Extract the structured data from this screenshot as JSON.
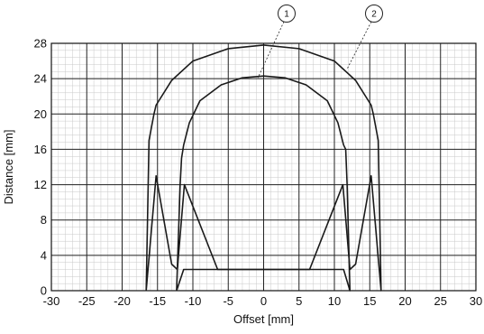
{
  "chart_data": {
    "type": "line",
    "xlabel": "Offset [mm]",
    "ylabel": "Distance [mm]",
    "xlim": [
      -30,
      30
    ],
    "ylim": [
      0,
      28
    ],
    "xticks": [
      -30,
      -25,
      -20,
      -15,
      -10,
      -5,
      0,
      5,
      10,
      15,
      20,
      25,
      30
    ],
    "yticks": [
      0,
      4,
      8,
      12,
      16,
      20,
      24,
      28
    ],
    "grid": true,
    "minor_grid": true,
    "line_color": "#1a1a1a",
    "series": [
      {
        "name": "1",
        "x": [
          -12.3,
          -11.3,
          -6.5,
          6.5,
          11.3,
          12.2,
          12.2,
          11.8,
          11.6,
          11.3,
          11.3,
          10.5,
          9.0,
          6.0,
          3.0,
          0.0,
          -3.0,
          -6.0,
          -9.0,
          -10.5,
          -11.3,
          -11.3,
          -11.6,
          -11.8,
          -12.3
        ],
        "y": [
          0.0,
          2.4,
          2.4,
          2.4,
          2.4,
          0.0,
          0.0,
          12.0,
          16.0,
          16.5,
          16.5,
          19.0,
          21.5,
          23.3,
          24.1,
          24.3,
          24.1,
          23.3,
          21.5,
          19.0,
          16.5,
          16.5,
          15.0,
          12.0,
          0.0
        ]
      },
      {
        "name": "2",
        "x": [
          -16.6,
          -15.2,
          -13.0,
          -12.2,
          -11.2,
          -6.5,
          6.5,
          11.2,
          12.2,
          13.0,
          15.2,
          16.6,
          16.6,
          16.2,
          15.5,
          15.2,
          13.0,
          10.0,
          5.0,
          0.0,
          -5.0,
          -10.0,
          -13.0,
          -15.2,
          -15.5,
          -16.2,
          -16.6
        ],
        "y": [
          0.0,
          13.0,
          3.0,
          2.4,
          12.0,
          2.4,
          2.4,
          12.0,
          2.4,
          3.0,
          13.0,
          0.0,
          0.0,
          17.0,
          20.0,
          21.0,
          23.8,
          26.0,
          27.4,
          27.8,
          27.4,
          26.0,
          23.8,
          21.0,
          20.0,
          17.0,
          0.0
        ]
      }
    ]
  }
}
